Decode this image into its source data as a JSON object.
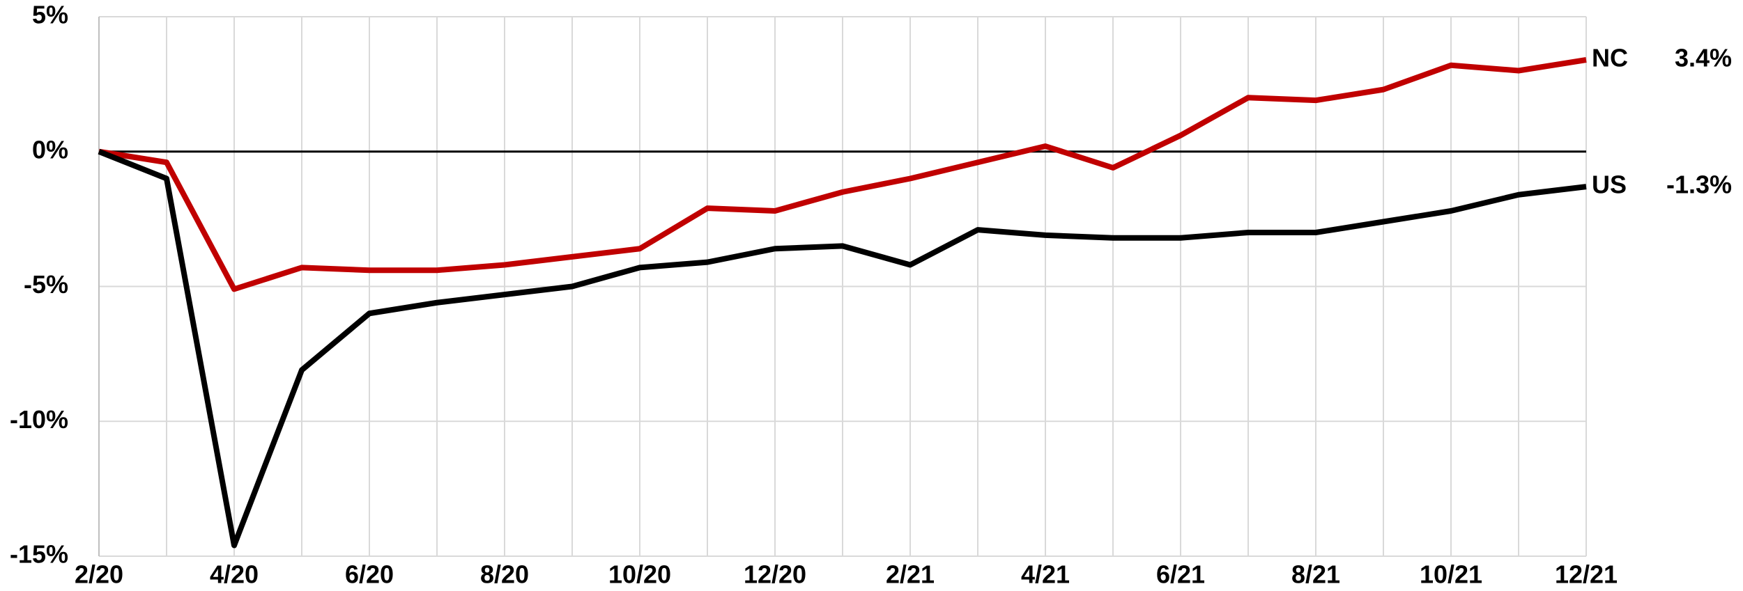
{
  "chart_data": {
    "type": "line",
    "categories": [
      "2/20",
      null,
      "4/20",
      null,
      "6/20",
      null,
      "8/20",
      null,
      "10/20",
      null,
      "12/20",
      null,
      "2/21",
      null,
      "4/21",
      null,
      "6/21",
      null,
      "8/21",
      null,
      "10/21",
      null,
      "12/21"
    ],
    "series": [
      {
        "name": "NC",
        "color": "#c00000",
        "values": [
          0,
          -0.4,
          -5.1,
          -4.3,
          -4.4,
          -4.4,
          -4.2,
          -3.9,
          -3.6,
          -2.1,
          -2.2,
          -1.5,
          -1.0,
          -0.4,
          0.2,
          -0.6,
          0.6,
          2.0,
          1.9,
          2.3,
          3.2,
          3.0,
          3.4
        ],
        "value_labels": [
          null,
          null,
          null,
          null,
          null,
          null,
          null,
          null,
          null,
          null,
          null,
          null,
          null,
          null,
          null,
          null,
          null,
          null,
          null,
          null,
          null,
          null,
          "3.4%"
        ]
      },
      {
        "name": "US",
        "color": "#000000",
        "values": [
          0,
          -1.0,
          -14.6,
          -8.1,
          -6.0,
          -5.6,
          -5.3,
          -5.0,
          -4.3,
          -4.1,
          -3.6,
          -3.5,
          -4.2,
          -2.9,
          -3.1,
          -3.2,
          -3.2,
          -3.0,
          -3.0,
          -2.6,
          -2.2,
          -1.6,
          -1.3
        ],
        "value_labels": [
          null,
          null,
          null,
          null,
          null,
          null,
          null,
          null,
          null,
          null,
          null,
          null,
          null,
          null,
          null,
          null,
          null,
          null,
          null,
          null,
          null,
          null,
          "-1.3%"
        ]
      }
    ],
    "ylim": [
      -15,
      5
    ],
    "yticks": [
      {
        "value": -15,
        "label": "-15%"
      },
      {
        "value": -10,
        "label": "-10%"
      },
      {
        "value": -5,
        "label": "-5%"
      },
      {
        "value": 0,
        "label": "0%"
      },
      {
        "value": 5,
        "label": "5%"
      }
    ],
    "grid": true
  }
}
